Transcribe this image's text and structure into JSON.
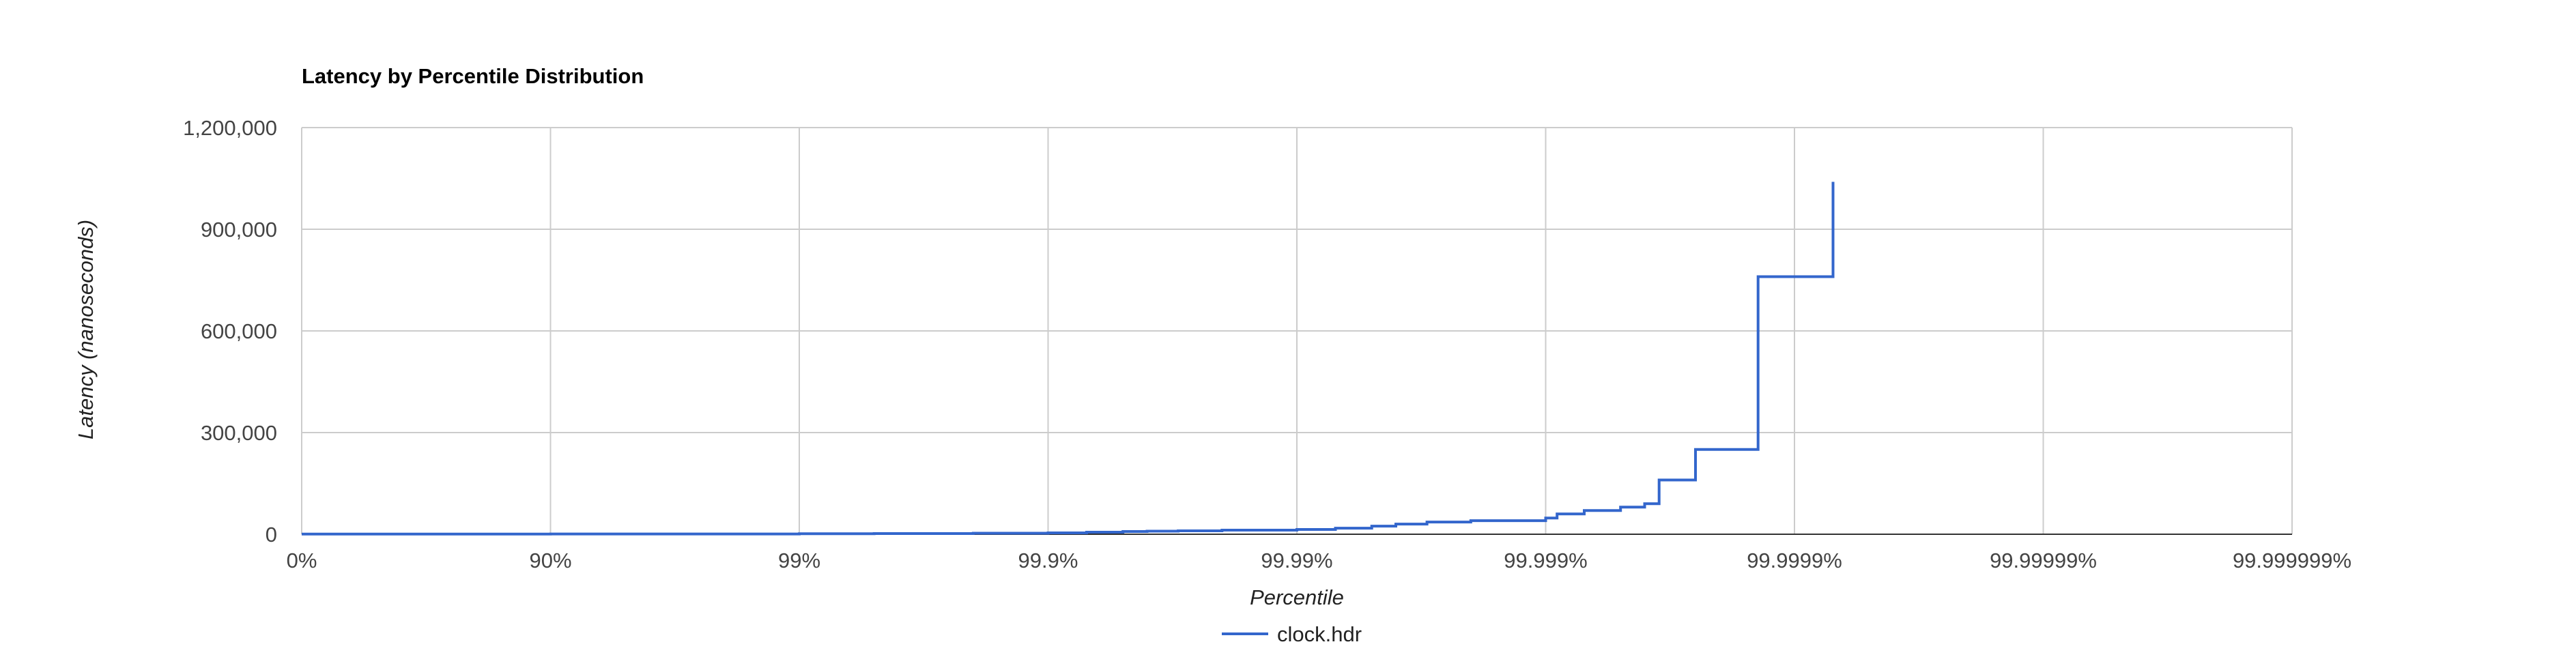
{
  "chart_data": {
    "type": "line",
    "title": "Latency by Percentile Distribution",
    "xlabel": "Percentile",
    "ylabel": "Latency (nanoseconds)",
    "x_scale": "log-percentile",
    "x_ticks": [
      "0%",
      "90%",
      "99%",
      "99.9%",
      "99.99%",
      "99.999%",
      "99.9999%",
      "99.99999%",
      "99.999999%"
    ],
    "x_range": [
      "0%",
      "99.999999%"
    ],
    "y_ticks": [
      "0",
      "300,000",
      "600,000",
      "900,000",
      "1,200,000"
    ],
    "ylim": [
      0,
      1200000
    ],
    "grid": true,
    "legend_position": "bottom",
    "colors": {
      "series": "#3366cc",
      "grid": "#cccccc",
      "baseline": "#333333"
    },
    "series": [
      {
        "name": "clock.hdr",
        "percentile": [
          "0%",
          "50%",
          "90%",
          "99%",
          "99.5%",
          "99.8%",
          "99.9%",
          "99.93%",
          "99.95%",
          "99.96%",
          "99.97%",
          "99.98%",
          "99.99%",
          "99.993%",
          "99.995%",
          "99.996%",
          "99.997%",
          "99.998%",
          "99.999%",
          "99.9991%",
          "99.9993%",
          "99.9995%",
          "99.9996%",
          "99.99965%",
          "99.99975%",
          "99.9998%",
          "99.99986%",
          "99.99993%"
        ],
        "latency": [
          500,
          700,
          900,
          1500,
          2000,
          3000,
          4000,
          6000,
          8000,
          9000,
          10000,
          12000,
          14000,
          18000,
          24000,
          30000,
          36000,
          40000,
          48000,
          60000,
          70000,
          80000,
          90000,
          160000,
          250000,
          250000,
          760000,
          1040000
        ]
      }
    ]
  }
}
